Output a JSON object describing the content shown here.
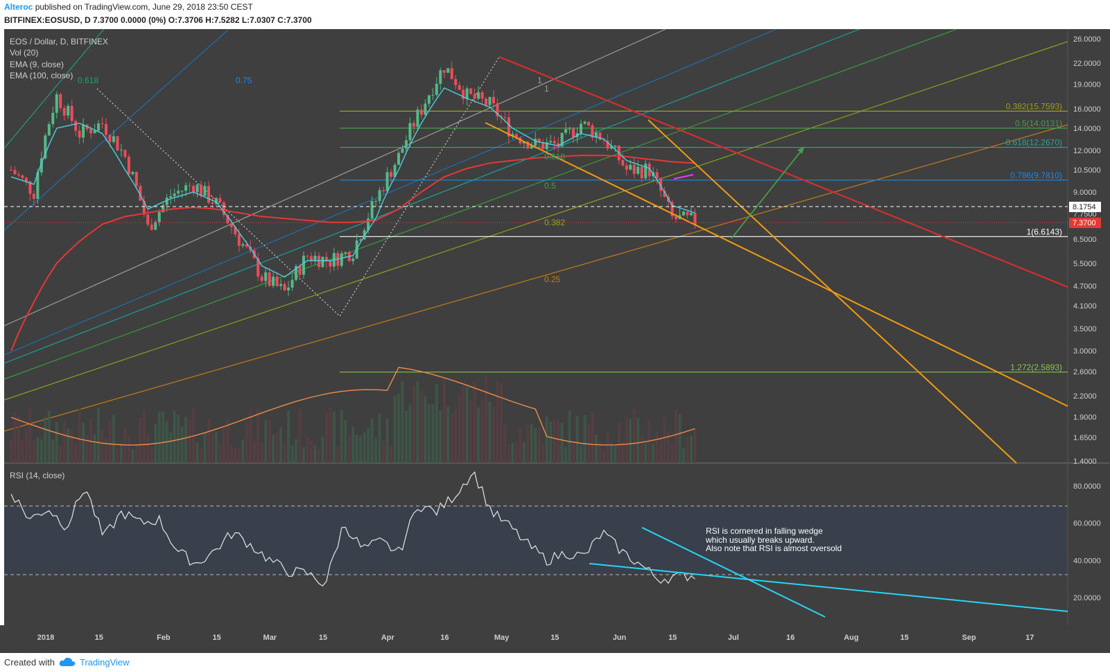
{
  "header": {
    "author": "Alteroc",
    "published_text": "published on TradingView.com, June 29, 2018 23:50 CEST",
    "symbol_line": "BITFINEX:EOSUSD, D  7.3700 0.0000 (0%) O:7.3706 H:7.5282 L:7.0307 C:7.3700"
  },
  "legend": {
    "title": "EOS / Dollar, D, BITFINEX",
    "vol": "Vol (20)",
    "ema9": "EMA (9, close)",
    "ema100": "EMA (100, close)"
  },
  "rsi_panel": {
    "title": "RSI (14, close)",
    "note_line1": "RSI is cornered in falling wedge",
    "note_line2": "which usually breaks upward.",
    "note_line3": "Also note that RSI is almost oversold"
  },
  "footer": {
    "created_with": "Created with",
    "brand": "TradingView"
  },
  "colors": {
    "background": "#3f3f3f",
    "rsi_band": "#39404b",
    "bull": "#53b987",
    "bear": "#eb4d5c",
    "ema9": "#4dd0e1",
    "ema100": "#e53935",
    "vol_ma": "#f28c4a",
    "orange": "#f39c12",
    "red_line": "#d32f2f",
    "cyan_line": "#29d4f5"
  },
  "chart_data": [
    {
      "type": "candlestick",
      "title": "EOS / Dollar, D, BITFINEX",
      "scale": "log",
      "ylim": [
        1.3,
        28
      ],
      "x_labels": [
        "2018",
        "15",
        "Feb",
        "15",
        "Mar",
        "15",
        "Apr",
        "16",
        "May",
        "15",
        "Jun",
        "15",
        "Jul",
        "16",
        "Aug",
        "15",
        "Sep",
        "17"
      ],
      "y_ticks": [
        "26.0000",
        "22.0000",
        "19.0000",
        "16.0000",
        "14.0000",
        "12.0000",
        "10.5000",
        "9.0000",
        "7.7500",
        "6.5000",
        "5.5000",
        "4.7000",
        "4.1000",
        "3.5000",
        "3.0000",
        "2.6000",
        "2.2000",
        "1.9000",
        "1.6500",
        "1.4000"
      ],
      "last_price": "7.3700",
      "dashed_level": "8.1754",
      "series": [
        {
          "name": "EOSUSD daily close (approx.)",
          "x": [
            "Jan 1",
            "Jan 8",
            "Jan 13",
            "Jan 20",
            "Jan 25",
            "Feb 1",
            "Feb 6",
            "Feb 12",
            "Feb 20",
            "Mar 1",
            "Mar 8",
            "Mar 15",
            "Mar 19",
            "Mar 25",
            "Apr 1",
            "Apr 8",
            "Apr 12",
            "Apr 20",
            "Apr 25",
            "Apr 29",
            "May 5",
            "May 10",
            "May 15",
            "May 22",
            "May 29",
            "Jun 4",
            "Jun 8",
            "Jun 12",
            "Jun 18",
            "Jun 23",
            "Jun 29"
          ],
          "values": [
            10.5,
            9.0,
            17.5,
            13.5,
            14.5,
            11.5,
            7.0,
            8.8,
            9.5,
            8.3,
            6.5,
            5.0,
            4.5,
            5.8,
            5.6,
            6.0,
            8.5,
            11.5,
            16.0,
            21.5,
            17.5,
            16.5,
            13.5,
            12.5,
            12.5,
            14.5,
            13.0,
            10.5,
            10.5,
            7.5,
            7.37
          ]
        },
        {
          "name": "EMA (9, close)",
          "values": [
            10.0,
            9.5,
            14.0,
            14.5,
            13.5,
            10.5,
            8.0,
            8.6,
            9.0,
            8.4,
            6.8,
            5.4,
            5.0,
            5.6,
            5.6,
            5.8,
            7.5,
            10.5,
            14.5,
            18.5,
            17.2,
            16.2,
            14.0,
            12.8,
            12.4,
            13.5,
            13.0,
            11.2,
            10.6,
            8.2,
            7.8
          ]
        },
        {
          "name": "EMA (100, close)",
          "values": [
            3.0,
            4.2,
            5.5,
            6.4,
            7.2,
            7.6,
            7.8,
            8.0,
            8.1,
            8.0,
            7.8,
            7.6,
            7.5,
            7.4,
            7.3,
            7.3,
            7.4,
            8.0,
            9.0,
            10.0,
            10.6,
            11.0,
            11.2,
            11.4,
            11.5,
            11.6,
            11.6,
            11.5,
            11.3,
            11.1,
            11.0
          ]
        }
      ],
      "annotations": {
        "fib_retracement": [
          {
            "label": "0.382(15.7593)",
            "value": 15.7593
          },
          {
            "label": "0.5(14.0131)",
            "value": 14.0131
          },
          {
            "label": "0.618(12.2670)",
            "value": 12.267
          },
          {
            "label": "0.786(9.7810)",
            "value": 9.781
          },
          {
            "label": "1(6.6143)",
            "value": 6.6143
          },
          {
            "label": "1.272(2.5893)",
            "value": 2.5893
          }
        ],
        "pitchfan_labels": [
          "0.618",
          "0.75",
          "0.618",
          "0.5",
          "0.382",
          "0.25",
          "1",
          "1"
        ]
      }
    },
    {
      "type": "line",
      "title": "RSI (14, close)",
      "ylim": [
        5,
        92
      ],
      "y_ticks": [
        "80.0000",
        "60.0000",
        "40.0000",
        "20.0000"
      ],
      "bands": [
        30,
        70
      ],
      "series": [
        {
          "name": "RSI",
          "values": [
            77,
            62,
            68,
            58,
            80,
            52,
            66,
            60,
            62,
            45,
            38,
            45,
            55,
            48,
            40,
            34,
            33,
            27,
            60,
            46,
            50,
            44,
            70,
            66,
            75,
            88,
            66,
            58,
            48,
            40,
            44,
            42,
            55,
            45,
            38,
            30,
            31,
            32
          ]
        }
      ]
    }
  ]
}
